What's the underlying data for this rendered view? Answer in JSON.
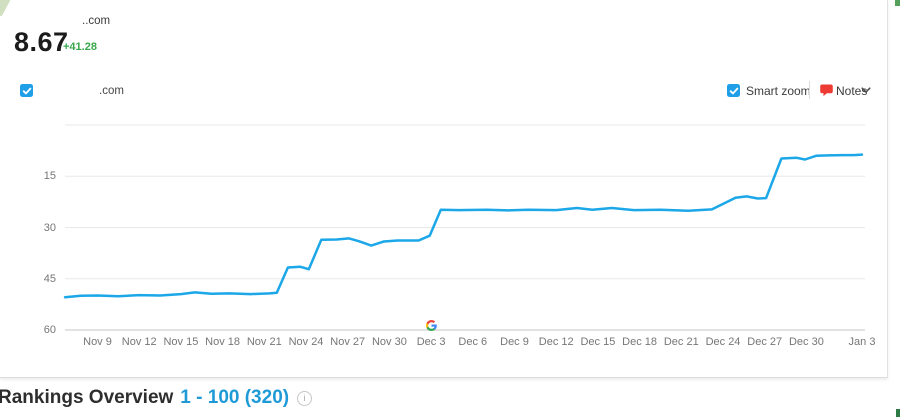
{
  "header": {
    "domain": "..com",
    "visibility_value": "8.67",
    "visibility_change": "+41.28"
  },
  "legend": {
    "domain": ".com",
    "checkbox_checked": true
  },
  "controls": {
    "smart_zoom": "Smart zoom",
    "smart_zoom_checked": true,
    "notes": "Notes"
  },
  "chart_data": {
    "type": "line",
    "title": "",
    "y_axis": {
      "inverted": true,
      "min": 0,
      "max": 60,
      "tick_labels": [
        "15",
        "30",
        "45",
        "60"
      ],
      "grid_values": [
        0,
        15,
        30,
        45
      ],
      "axis_value": 60
    },
    "x_ticks": [
      {
        "label": "Nov 9",
        "d": 0
      },
      {
        "label": "Nov 12",
        "d": 3
      },
      {
        "label": "Nov 15",
        "d": 6
      },
      {
        "label": "Nov 18",
        "d": 9
      },
      {
        "label": "Nov 21",
        "d": 12
      },
      {
        "label": "Nov 24",
        "d": 15
      },
      {
        "label": "Nov 27",
        "d": 18
      },
      {
        "label": "Nov 30",
        "d": 21
      },
      {
        "label": "Dec 3",
        "d": 24
      },
      {
        "label": "Dec 6",
        "d": 27
      },
      {
        "label": "Dec 9",
        "d": 30
      },
      {
        "label": "Dec 12",
        "d": 33
      },
      {
        "label": "Dec 15",
        "d": 36
      },
      {
        "label": "Dec 18",
        "d": 39
      },
      {
        "label": "Dec 21",
        "d": 42
      },
      {
        "label": "Dec 24",
        "d": 45
      },
      {
        "label": "Dec 27",
        "d": 48
      },
      {
        "label": "Dec 30",
        "d": 51
      },
      {
        "label": "Jan 3",
        "d": 55
      }
    ],
    "series": [
      {
        "name": ".com",
        "color": "#1ba7e8",
        "points": [
          [
            -2.34,
            50.4
          ],
          [
            -1.2,
            50.0
          ],
          [
            0,
            49.9
          ],
          [
            1.5,
            50.1
          ],
          [
            3,
            49.8
          ],
          [
            4.5,
            49.9
          ],
          [
            6,
            49.5
          ],
          [
            7,
            49.0
          ],
          [
            8.2,
            49.4
          ],
          [
            9.5,
            49.3
          ],
          [
            11,
            49.5
          ],
          [
            12.4,
            49.3
          ],
          [
            12.9,
            49.1
          ],
          [
            13.7,
            41.7
          ],
          [
            14.6,
            41.5
          ],
          [
            15.2,
            42.2
          ],
          [
            16.1,
            33.6
          ],
          [
            17.2,
            33.5
          ],
          [
            18.1,
            33.2
          ],
          [
            18.8,
            34.0
          ],
          [
            19.7,
            35.3
          ],
          [
            20.6,
            34.1
          ],
          [
            21.6,
            33.8
          ],
          [
            23.1,
            33.8
          ],
          [
            23.9,
            32.4
          ],
          [
            24.7,
            24.8
          ],
          [
            26,
            24.9
          ],
          [
            28,
            24.8
          ],
          [
            29.5,
            25.0
          ],
          [
            31,
            24.8
          ],
          [
            33,
            24.9
          ],
          [
            34.5,
            24.3
          ],
          [
            35.6,
            24.8
          ],
          [
            37,
            24.3
          ],
          [
            38.6,
            24.9
          ],
          [
            40.5,
            24.8
          ],
          [
            42.5,
            25.1
          ],
          [
            44.2,
            24.7
          ],
          [
            45.9,
            21.3
          ],
          [
            46.7,
            20.9
          ],
          [
            47.5,
            21.5
          ],
          [
            48.1,
            21.4
          ],
          [
            49.2,
            9.8
          ],
          [
            50.3,
            9.6
          ],
          [
            50.9,
            10.1
          ],
          [
            51.7,
            9.0
          ],
          [
            52.6,
            8.9
          ],
          [
            53.6,
            8.8
          ],
          [
            54.4,
            8.8
          ],
          [
            55,
            8.67
          ]
        ]
      }
    ],
    "annotations": [
      {
        "type": "google-update",
        "icon": "google-g",
        "d": 24,
        "x_label": "Dec 3"
      }
    ],
    "grid": true,
    "legend_position": "top-left"
  },
  "footer": {
    "title": "Rankings Overview",
    "range": "1 - 100 (320)"
  },
  "colors": {
    "line": "#1ba7e8",
    "checkbox_blue": "#1e9fe8",
    "positive_green": "#37a84c",
    "link_blue": "#1e9bd7",
    "notes_red": "#ee3b33",
    "gridline": "#e8e8e8",
    "axis": "#c6c6c6"
  }
}
